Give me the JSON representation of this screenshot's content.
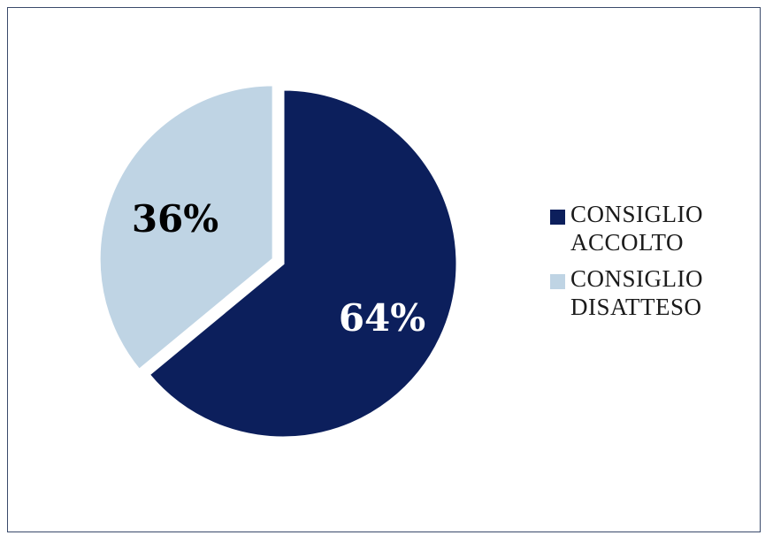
{
  "chart_data": {
    "type": "pie",
    "title": "",
    "slices": [
      {
        "label": "CONSIGLIO ACCOLTO",
        "value": 64,
        "display": "64%",
        "color": "#0c1f5c",
        "label_color": "#ffffff"
      },
      {
        "label": "CONSIGLIO DISATTESO",
        "value": 36,
        "display": "36%",
        "color": "#bfd4e4",
        "label_color": "#000000"
      }
    ],
    "legend_position": "right",
    "exploded_slice": "CONSIGLIO DISATTESO"
  },
  "colors": {
    "background": "#ffffff",
    "border": "#3a4a6b"
  }
}
